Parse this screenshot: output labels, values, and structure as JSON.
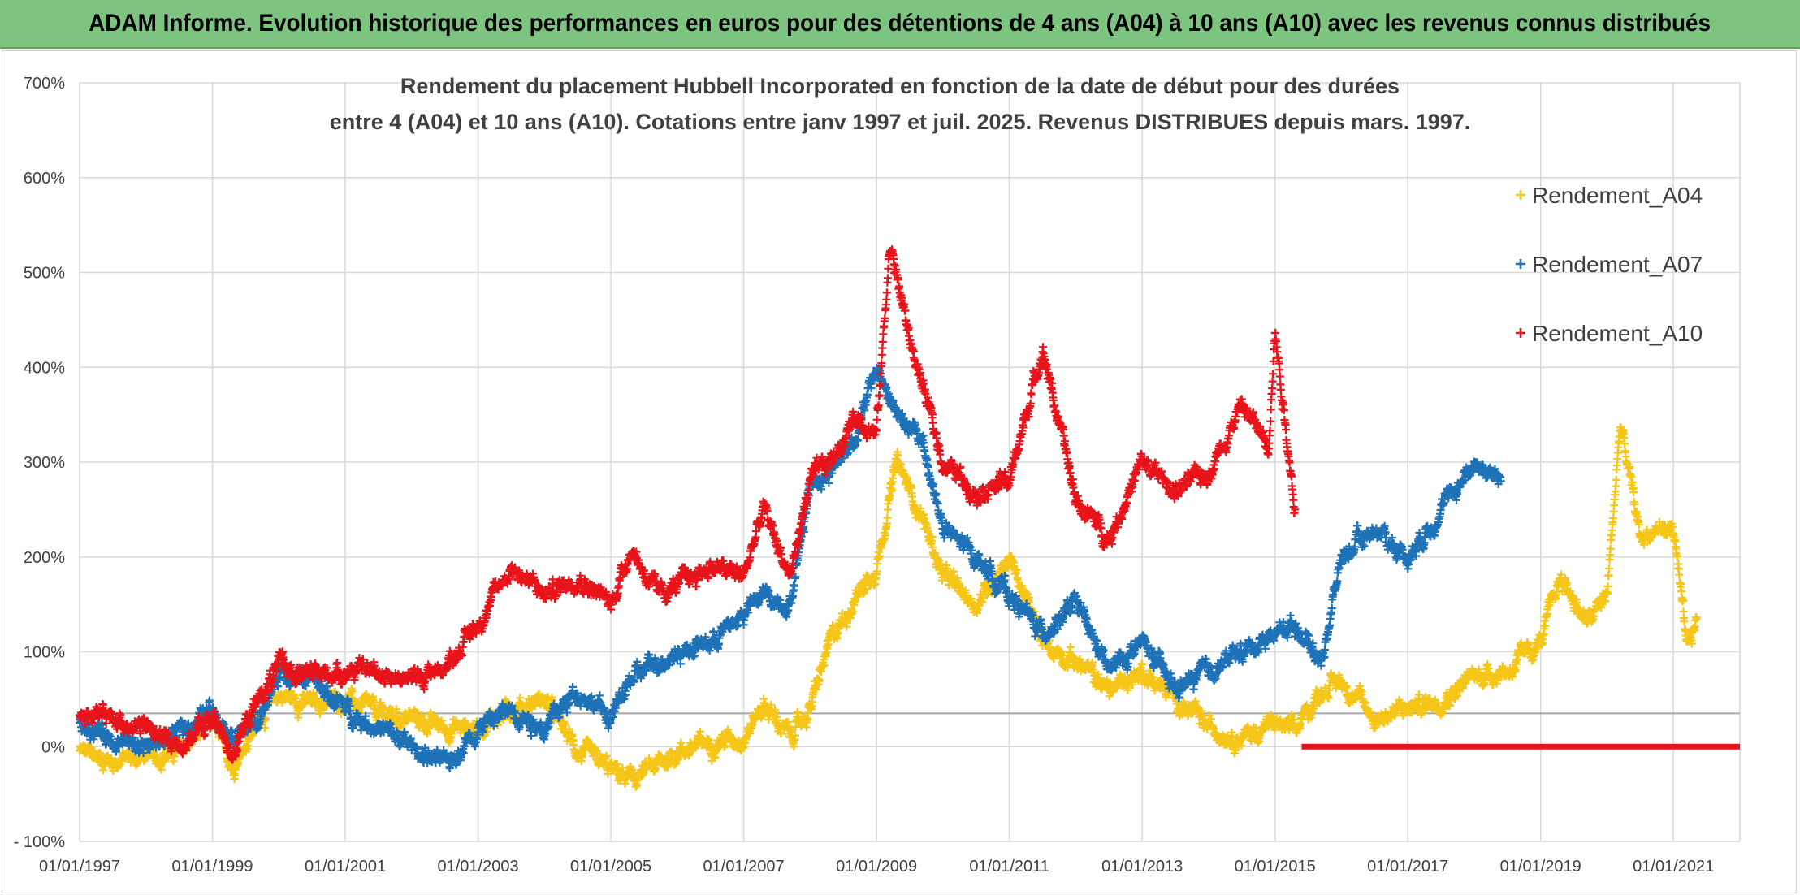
{
  "header": {
    "banner": "ADAM Informe. Evolution historique des performances en euros pour des détentions de 4 ans (A04) à 10 ans (A10) avec les revenus connus distribués"
  },
  "chart_data": {
    "type": "scatter",
    "title_lines": [
      "Rendement du placement Hubbell Incorporated en fonction de la date de début pour des durées",
      "entre 4 (A04) et 10 ans (A10). Cotations entre janv 1997 et juil. 2025. Revenus DISTRIBUES depuis mars. 1997."
    ],
    "xlabel": "",
    "ylabel": "",
    "x_tick_labels": [
      "01/01/1997",
      "01/01/1999",
      "01/01/2001",
      "01/01/2003",
      "01/01/2005",
      "01/01/2007",
      "01/01/2009",
      "01/01/2011",
      "01/01/2013",
      "01/01/2015",
      "01/01/2017",
      "01/01/2019",
      "01/01/2021"
    ],
    "x_tick_years": [
      1997,
      1999,
      2001,
      2003,
      2005,
      2007,
      2009,
      2011,
      2013,
      2015,
      2017,
      2019,
      2021
    ],
    "xlim": [
      1997.0,
      2022.0
    ],
    "y_tick_labels": [
      "- 100%",
      "0%",
      "100%",
      "200%",
      "300%",
      "400%",
      "500%",
      "600%",
      "700%"
    ],
    "y_tick_values": [
      -100,
      0,
      100,
      200,
      300,
      400,
      500,
      600,
      700
    ],
    "ylim": [
      -100,
      700
    ],
    "reference_line": 35,
    "grid": true,
    "legend_position": "top-right",
    "marker": "+",
    "series": [
      {
        "name": "Rendement_A04",
        "color": "#f5c518",
        "x": [
          1997.0,
          1997.5,
          1998.0,
          1998.5,
          1999.0,
          1999.3,
          1999.7,
          2000.0,
          2000.5,
          2001.0,
          2001.5,
          2002.0,
          2002.5,
          2003.0,
          2003.5,
          2004.0,
          2004.5,
          2005.0,
          2005.3,
          2005.7,
          2006.0,
          2006.5,
          2007.0,
          2007.3,
          2007.7,
          2008.0,
          2008.3,
          2008.7,
          2009.0,
          2009.3,
          2009.7,
          2010.0,
          2010.5,
          2011.0,
          2011.5,
          2012.0,
          2012.5,
          2013.0,
          2013.5,
          2014.0,
          2014.5,
          2015.0,
          2015.3,
          2015.7,
          2016.0,
          2016.5,
          2017.0,
          2017.5,
          2018.0,
          2018.5,
          2019.0,
          2019.3,
          2019.7,
          2020.0,
          2020.2,
          2020.5,
          2020.8,
          2021.0,
          2021.2,
          2021.35
        ],
        "y": [
          -5,
          -15,
          -10,
          -5,
          25,
          -20,
          30,
          55,
          45,
          50,
          35,
          30,
          20,
          20,
          40,
          50,
          -5,
          -25,
          -35,
          -20,
          -5,
          5,
          10,
          45,
          10,
          40,
          110,
          160,
          190,
          300,
          240,
          180,
          150,
          200,
          110,
          90,
          60,
          80,
          50,
          20,
          10,
          25,
          15,
          60,
          70,
          30,
          40,
          50,
          75,
          80,
          110,
          180,
          130,
          160,
          340,
          220,
          230,
          230,
          100,
          135
        ]
      },
      {
        "name": "Rendement_A07",
        "color": "#1f72b8",
        "x": [
          1997.0,
          1997.5,
          1998.0,
          1998.5,
          1999.0,
          1999.3,
          1999.7,
          2000.0,
          2000.5,
          2001.0,
          2001.5,
          2002.0,
          2002.5,
          2003.0,
          2003.5,
          2004.0,
          2004.5,
          2005.0,
          2005.3,
          2005.7,
          2006.0,
          2006.5,
          2007.0,
          2007.3,
          2007.7,
          2008.0,
          2008.3,
          2008.7,
          2009.0,
          2009.3,
          2009.7,
          2010.0,
          2010.5,
          2011.0,
          2011.5,
          2012.0,
          2012.5,
          2013.0,
          2013.5,
          2014.0,
          2014.5,
          2015.0,
          2015.3,
          2015.7,
          2016.0,
          2016.5,
          2017.0,
          2017.5,
          2018.0,
          2018.4
        ],
        "y": [
          25,
          10,
          0,
          15,
          40,
          15,
          25,
          80,
          70,
          40,
          20,
          0,
          -20,
          20,
          40,
          20,
          60,
          30,
          70,
          90,
          100,
          110,
          140,
          160,
          150,
          280,
          290,
          330,
          400,
          350,
          320,
          230,
          200,
          160,
          120,
          150,
          80,
          110,
          60,
          80,
          100,
          120,
          130,
          90,
          200,
          230,
          200,
          250,
          300,
          280
        ]
      },
      {
        "name": "Rendement_A10",
        "color": "#e8141b",
        "x": [
          1997.0,
          1997.5,
          1998.0,
          1998.5,
          1999.0,
          1999.3,
          1999.7,
          2000.0,
          2000.5,
          2001.0,
          2001.5,
          2002.0,
          2002.5,
          2003.0,
          2003.5,
          2004.0,
          2004.5,
          2005.0,
          2005.3,
          2005.7,
          2006.0,
          2006.5,
          2007.0,
          2007.3,
          2007.7,
          2008.0,
          2008.3,
          2008.7,
          2009.0,
          2009.2,
          2009.5,
          2010.0,
          2010.5,
          2011.0,
          2011.5,
          2012.0,
          2012.5,
          2013.0,
          2013.5,
          2014.0,
          2014.5,
          2014.9,
          2015.0,
          2015.3
        ],
        "y": [
          35,
          30,
          20,
          0,
          30,
          -5,
          50,
          85,
          75,
          80,
          80,
          70,
          85,
          130,
          190,
          160,
          180,
          150,
          210,
          160,
          170,
          190,
          180,
          250,
          180,
          280,
          300,
          350,
          330,
          530,
          430,
          300,
          270,
          280,
          420,
          260,
          220,
          300,
          270,
          290,
          360,
          320,
          440,
          250
        ],
        "flat_segment": {
          "x_start": 2015.4,
          "x_end": 2022.0,
          "y": 0
        }
      }
    ]
  }
}
